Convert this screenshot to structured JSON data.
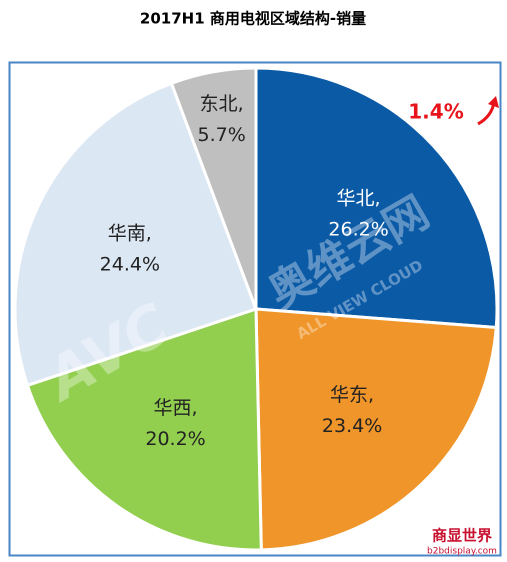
{
  "chart_data": {
    "type": "pie",
    "title": "2017H1 商用电视区域结构-销量",
    "categories": [
      "华北,",
      "华东,",
      "华西,",
      "华南,",
      "东北,"
    ],
    "values": [
      26.2,
      23.4,
      20.2,
      24.4,
      5.7
    ],
    "value_labels": [
      "26.2%",
      "23.4%",
      "20.2%",
      "24.4%",
      "5.7%"
    ],
    "colors": [
      "#0b5aa6",
      "#f0952a",
      "#92cf4f",
      "#dce7f4",
      "#bfbfbf"
    ],
    "label_colors": [
      "#ffffff",
      "#222222",
      "#222222",
      "#222222",
      "#222222"
    ],
    "annotation": "1.4%",
    "watermark": {
      "brand": "奥维云网",
      "subtitle": "ALL VIEW CLOUD",
      "logo": "AVC"
    },
    "source_logo": {
      "name": "商显世界",
      "site": "b2bdisplay.com"
    }
  }
}
